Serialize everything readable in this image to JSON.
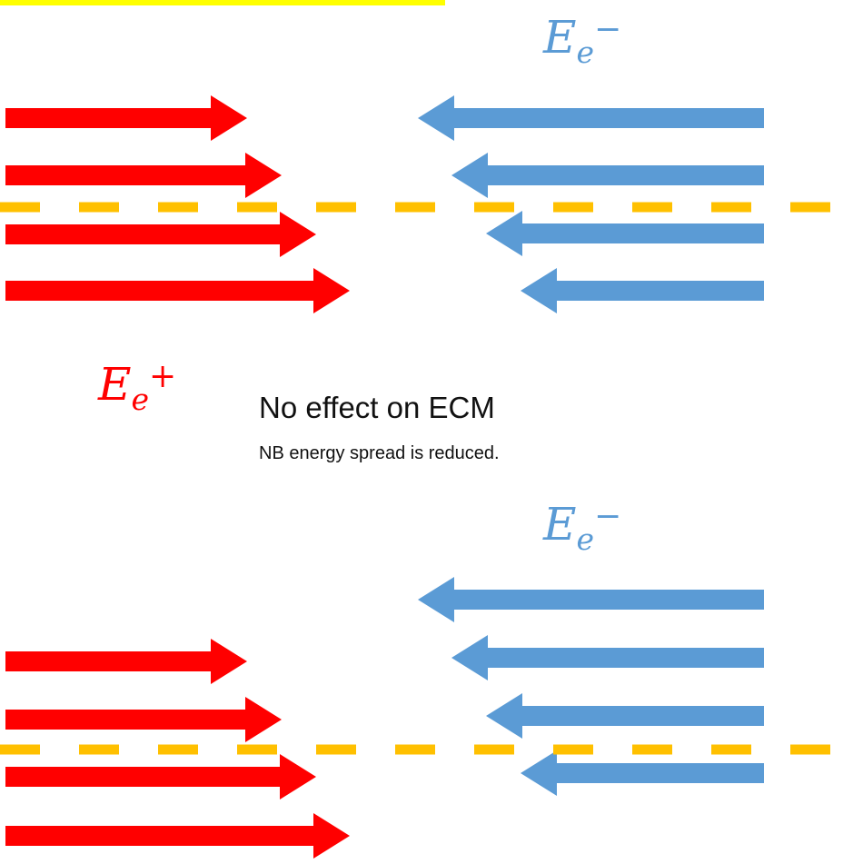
{
  "labels": {
    "e_minus_top": {
      "base": "E",
      "sub": "e",
      "sup": "−"
    },
    "e_plus": {
      "base": "E",
      "sub": "e",
      "sup": "+"
    },
    "e_minus_bottom": {
      "base": "E",
      "sub": "e",
      "sup": "−"
    }
  },
  "caption": {
    "main": "No effect on ECM",
    "note": "NB energy spread is reduced."
  },
  "colors": {
    "positron_arrow": "#ff0000",
    "electron_arrow": "#5b9bd5",
    "center_line": "#ffc000",
    "highlight_bar": "#ffff00",
    "e_minus_text": "#5b9bd5",
    "e_plus_text": "#ff0000"
  },
  "icons": [
    "red-right-arrow",
    "blue-left-arrow",
    "dashed-center-line"
  ]
}
